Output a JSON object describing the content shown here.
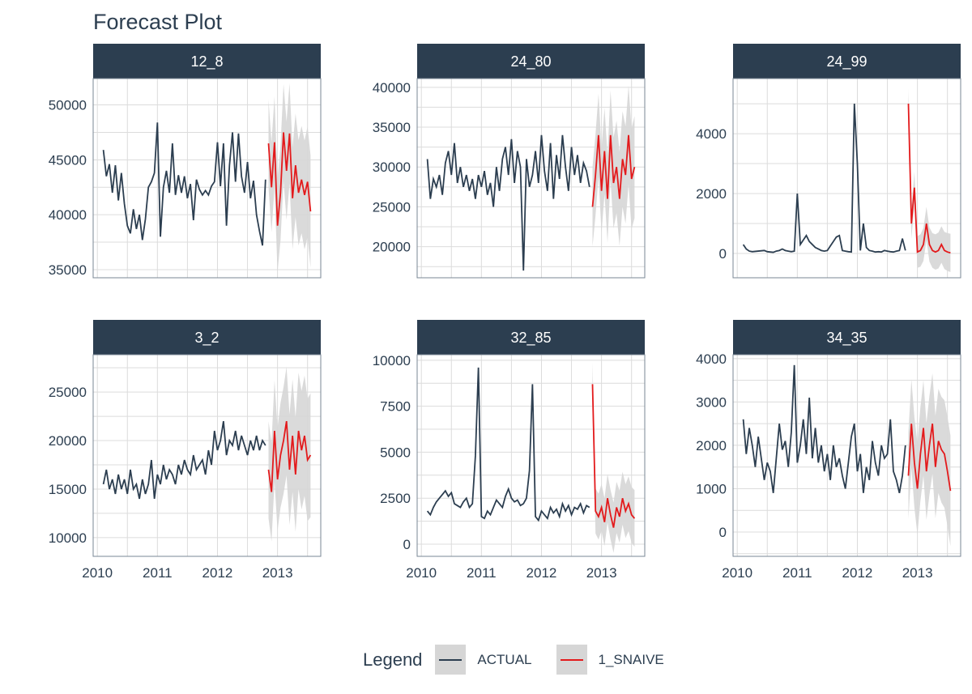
{
  "title": "Forecast Plot",
  "legend": {
    "title": "Legend",
    "items": [
      {
        "label": "ACTUAL",
        "color": "#2c3e50"
      },
      {
        "label": "1_SNAIVE",
        "color": "#e31a1c"
      }
    ]
  },
  "chart_data": {
    "type": "line",
    "title": "Forecast Plot",
    "x_axis": {
      "range": [
        2009.93,
        2013.72
      ],
      "ticks": [
        2010,
        2011,
        2012,
        2013
      ]
    },
    "actual_start": 2010.1,
    "forecast_start": 2012.85,
    "step_years": 0.05,
    "band_color": "#d6d6d6",
    "panels": [
      {
        "id": "12_8",
        "ylim": [
          34260,
          52400
        ],
        "yticks": [
          35000,
          40000,
          45000,
          50000
        ],
        "actual": [
          45900,
          43500,
          44600,
          42000,
          44500,
          41300,
          43800,
          41000,
          39000,
          38300,
          40500,
          38700,
          40000,
          37700,
          39600,
          42500,
          43000,
          43800,
          48400,
          38000,
          42500,
          44000,
          42000,
          46500,
          41800,
          43600,
          42000,
          43500,
          41500,
          42800,
          39500,
          43200,
          42300,
          41800,
          42200,
          41800,
          42600,
          43000,
          46600,
          42600,
          46500,
          39000,
          44500,
          47500,
          43000,
          47400,
          43500,
          42000,
          44800,
          41500,
          43100,
          40000,
          38500,
          37200,
          43200
        ],
        "forecast": [
          46500,
          42500,
          46600,
          39000,
          42000,
          47500,
          44000,
          47400,
          41500,
          44500,
          42000,
          43200,
          41800,
          43000,
          40300
        ],
        "interval_halfwidth": 4000
      },
      {
        "id": "24_80",
        "ylim": [
          16100,
          41100
        ],
        "yticks": [
          20000,
          25000,
          30000,
          35000,
          40000
        ],
        "actual": [
          31000,
          26000,
          28500,
          27500,
          29000,
          26500,
          30500,
          32000,
          29000,
          33000,
          28000,
          30000,
          27500,
          29000,
          27000,
          28500,
          26000,
          29000,
          27500,
          29500,
          26500,
          28000,
          25000,
          30000,
          27000,
          31000,
          32500,
          29000,
          33500,
          28000,
          32000,
          30000,
          17000,
          31000,
          27500,
          29000,
          32000,
          28000,
          34000,
          29500,
          27000,
          33000,
          26000,
          31500,
          28500,
          34000,
          30000,
          27000,
          32500,
          29000,
          31500,
          28000,
          30500,
          29500,
          27500
        ],
        "forecast": [
          25000,
          29000,
          34000,
          27000,
          32000,
          26000,
          34000,
          28000,
          30000,
          26000,
          31000,
          29000,
          34000,
          28500,
          30000
        ],
        "interval_halfwidth": 5000
      },
      {
        "id": "24_99",
        "ylim": [
          -810,
          5840
        ],
        "yticks": [
          0,
          2000,
          4000
        ],
        "actual": [
          300,
          150,
          80,
          60,
          70,
          80,
          90,
          100,
          60,
          50,
          40,
          80,
          100,
          150,
          100,
          80,
          60,
          80,
          2000,
          300,
          450,
          600,
          400,
          300,
          200,
          150,
          100,
          80,
          100,
          250,
          400,
          550,
          600,
          100,
          80,
          60,
          50,
          5000,
          3000,
          100,
          1000,
          200,
          100,
          80,
          50,
          60,
          50,
          100,
          80,
          60,
          50,
          80,
          100,
          500,
          100
        ],
        "forecast": [
          5000,
          1000,
          2200,
          50,
          100,
          300,
          1000,
          300,
          100,
          50,
          100,
          300,
          100,
          50,
          20
        ],
        "interval_halfwidth": 500
      },
      {
        "id": "3_2",
        "ylim": [
          8070,
          28850
        ],
        "yticks": [
          10000,
          15000,
          20000,
          25000
        ],
        "actual": [
          15500,
          17000,
          15000,
          16000,
          14500,
          16500,
          15000,
          16000,
          14500,
          17000,
          15000,
          15500,
          14000,
          16000,
          14500,
          15500,
          18000,
          14000,
          16500,
          15500,
          17500,
          16000,
          17000,
          16500,
          15500,
          17500,
          16500,
          18000,
          17000,
          16500,
          18500,
          17000,
          17500,
          18000,
          16500,
          19000,
          17500,
          21000,
          19000,
          20000,
          22000,
          18500,
          20000,
          19500,
          21000,
          19000,
          20500,
          19500,
          18500,
          20000,
          19000,
          20500,
          19000,
          20000,
          19500
        ],
        "forecast": [
          17000,
          14700,
          21000,
          16000,
          18500,
          20000,
          22000,
          17000,
          20500,
          16500,
          21000,
          19000,
          20500,
          18000,
          18500
        ],
        "interval_halfwidth": 5000
      },
      {
        "id": "32_85",
        "ylim": [
          -660,
          10300
        ],
        "yticks": [
          0,
          2500,
          5000,
          7500,
          10000
        ],
        "actual": [
          1800,
          1600,
          2000,
          2300,
          2500,
          2700,
          2900,
          2600,
          2800,
          2200,
          2100,
          2000,
          2300,
          2500,
          2000,
          2200,
          4800,
          9600,
          1500,
          1400,
          1800,
          1600,
          2000,
          2400,
          2200,
          2000,
          2600,
          3000,
          2500,
          2300,
          2400,
          2100,
          2200,
          2500,
          4000,
          8700,
          1500,
          1300,
          1800,
          1600,
          1400,
          2000,
          1700,
          1900,
          1500,
          2200,
          1800,
          2100,
          1600,
          2000,
          1900,
          2200,
          1700,
          2100,
          2000
        ],
        "forecast": [
          8700,
          1800,
          1500,
          2000,
          1200,
          2500,
          1600,
          900,
          2000,
          1500,
          2500,
          1800,
          2200,
          1600,
          1400
        ],
        "interval_halfwidth": 1200
      },
      {
        "id": "34_35",
        "ylim": [
          -560,
          4090
        ],
        "yticks": [
          0,
          1000,
          2000,
          3000,
          4000
        ],
        "actual": [
          2600,
          1800,
          2400,
          2000,
          1500,
          2200,
          1700,
          1200,
          1600,
          1400,
          900,
          1700,
          2500,
          1900,
          2100,
          1500,
          2300,
          3850,
          1600,
          2000,
          2600,
          1800,
          3100,
          1700,
          2400,
          1600,
          2000,
          1400,
          1800,
          1200,
          2000,
          1500,
          1700,
          1300,
          1000,
          1600,
          2200,
          2500,
          1400,
          1800,
          900,
          1500,
          1200,
          2100,
          1600,
          1300,
          2000,
          1700,
          1800,
          2600,
          1400,
          1200,
          900,
          1300,
          2000
        ],
        "forecast": [
          1300,
          2500,
          1600,
          1000,
          1800,
          2400,
          1400,
          2000,
          2500,
          1500,
          2100,
          1900,
          1800,
          1400,
          950
        ],
        "interval_halfwidth": 1000
      }
    ]
  }
}
